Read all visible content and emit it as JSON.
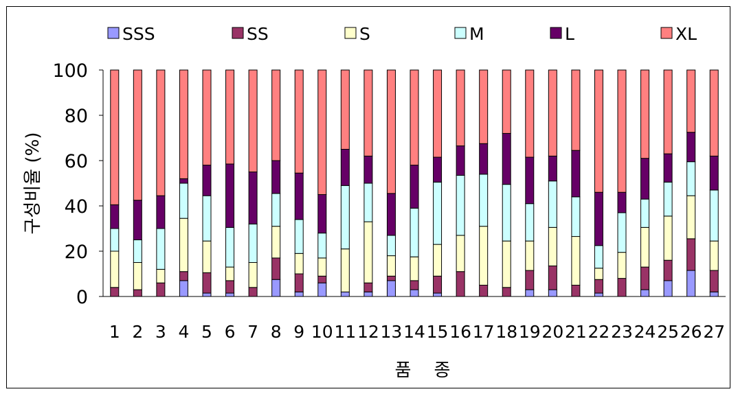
{
  "chart_data": {
    "type": "bar",
    "stacked": true,
    "categories": [
      "1",
      "2",
      "3",
      "4",
      "5",
      "6",
      "7",
      "8",
      "9",
      "10",
      "11",
      "12",
      "13",
      "14",
      "15",
      "16",
      "17",
      "18",
      "19",
      "20",
      "21",
      "22",
      "23",
      "24",
      "25",
      "26",
      "27"
    ],
    "series": [
      {
        "name": "SSS",
        "color": "#9999ff",
        "values": [
          0,
          0,
          0,
          7,
          1.5,
          1.5,
          0,
          7.5,
          2,
          6,
          2,
          2,
          7,
          3,
          1.5,
          0,
          0,
          0,
          3,
          3,
          0,
          1.5,
          0,
          3,
          7,
          11.5,
          2
        ]
      },
      {
        "name": "SS",
        "color": "#993366",
        "values": [
          4,
          3,
          6,
          4,
          9,
          5.5,
          4,
          9.5,
          8,
          3,
          0,
          4,
          2,
          4,
          7.5,
          11,
          5,
          4,
          8.5,
          10.5,
          5,
          6,
          8,
          10,
          9,
          14,
          9.5
        ]
      },
      {
        "name": "S",
        "color": "#ffffcc",
        "values": [
          16,
          12,
          6,
          23.5,
          14,
          6,
          11,
          14,
          9,
          8,
          19,
          27,
          9,
          10.5,
          14,
          16,
          26,
          20.5,
          13,
          17,
          21.5,
          5,
          11.5,
          17.5,
          19.5,
          19,
          13
        ]
      },
      {
        "name": "M",
        "color": "#ccffff",
        "values": [
          10,
          10,
          18,
          15.5,
          20,
          17.5,
          17,
          14.5,
          15,
          11,
          28,
          17,
          9,
          21.5,
          27.5,
          26.5,
          23,
          25,
          16.5,
          20.5,
          17.5,
          10,
          17.5,
          12.5,
          15,
          15,
          22.5
        ]
      },
      {
        "name": "L",
        "color": "#660066",
        "values": [
          10.5,
          17.5,
          14.5,
          2,
          13.5,
          28,
          23,
          14.5,
          20.5,
          17,
          16,
          12,
          18.5,
          19,
          11,
          13,
          13.5,
          22.5,
          20.5,
          11,
          20.5,
          23.5,
          9,
          18,
          12.5,
          13,
          15
        ]
      },
      {
        "name": "XL",
        "color": "#ff8080",
        "values": [
          59.5,
          57.5,
          55.5,
          48,
          42,
          41.5,
          45,
          40,
          45.5,
          55,
          35,
          38,
          54.5,
          42,
          38.5,
          33.5,
          32.5,
          28,
          38.5,
          38,
          35.5,
          54,
          54,
          39,
          37,
          27.5,
          38
        ]
      }
    ],
    "ylabel": "구성비율 (%)",
    "xlabel": "품    종",
    "ylim": [
      0,
      100
    ],
    "yticks": [
      0,
      20,
      40,
      60,
      80,
      100
    ],
    "legend_position": "top",
    "grid": false
  }
}
